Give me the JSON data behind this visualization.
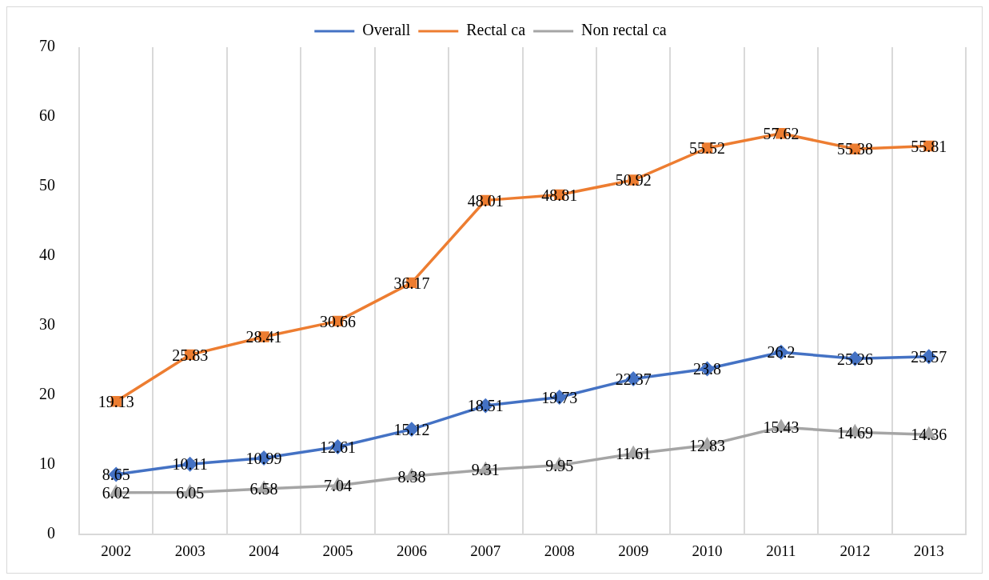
{
  "chart_data": {
    "type": "line",
    "categories": [
      "2002",
      "2003",
      "2004",
      "2005",
      "2006",
      "2007",
      "2008",
      "2009",
      "2010",
      "2011",
      "2012",
      "2013"
    ],
    "series": [
      {
        "name": "Overall",
        "color": "#4472c4",
        "marker": "diamond",
        "values": [
          8.65,
          10.11,
          10.99,
          12.61,
          15.12,
          18.51,
          19.73,
          22.37,
          23.8,
          26.2,
          25.26,
          25.57
        ]
      },
      {
        "name": "Rectal ca",
        "color": "#ed7d31",
        "marker": "square",
        "values": [
          19.13,
          25.83,
          28.41,
          30.66,
          36.17,
          48.01,
          48.81,
          50.92,
          55.52,
          57.62,
          55.38,
          55.81
        ]
      },
      {
        "name": "Non rectal ca",
        "color": "#a5a5a5",
        "marker": "triangle",
        "values": [
          6.02,
          6.05,
          6.58,
          7.04,
          8.38,
          9.31,
          9.95,
          11.61,
          12.83,
          15.43,
          14.69,
          14.36
        ]
      }
    ],
    "ylim": [
      0,
      70
    ],
    "yticks": [
      0,
      10,
      20,
      30,
      40,
      50,
      60,
      70
    ],
    "grid": "x",
    "legend": "top",
    "data_labels": true,
    "line_style": "solid"
  }
}
